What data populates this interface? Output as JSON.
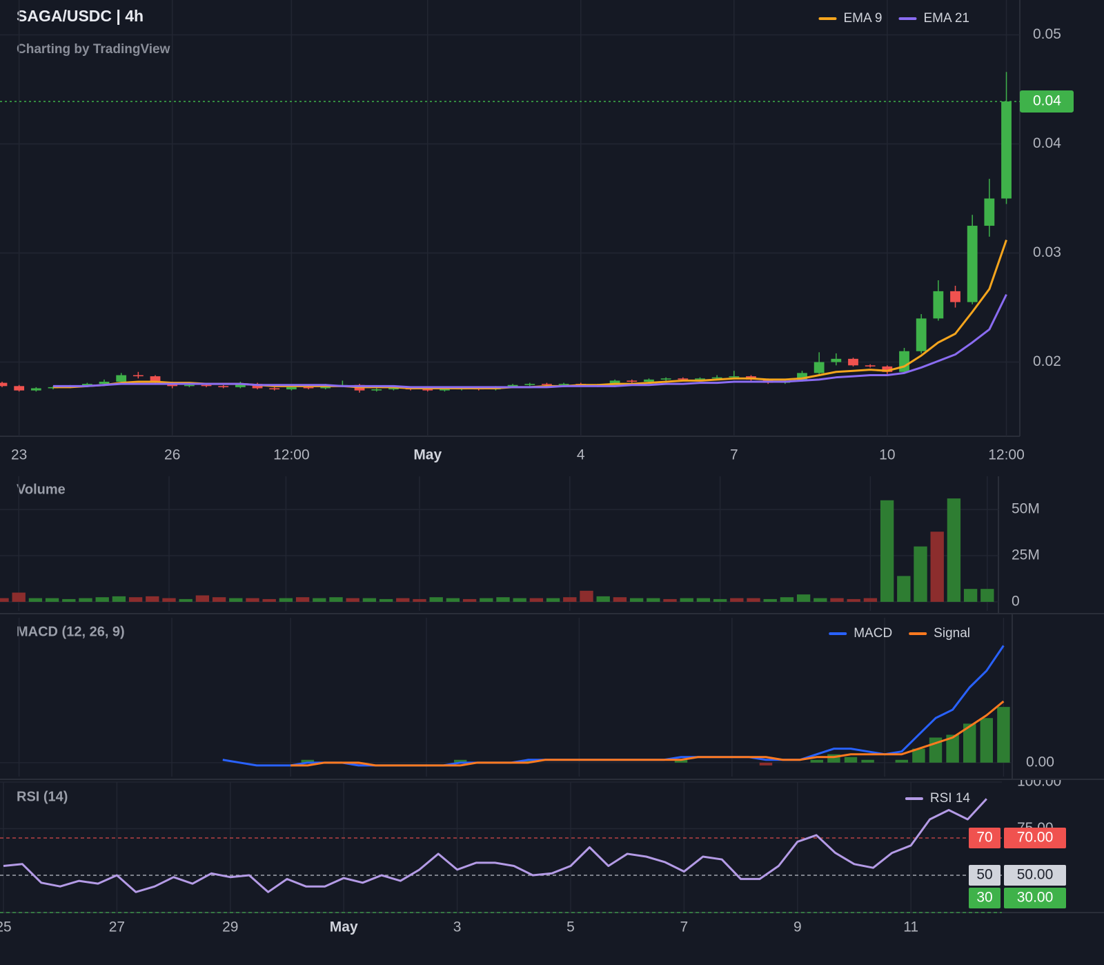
{
  "chart_data": [
    {
      "type": "candlestick",
      "title": "SAGA/USDC | 4h",
      "subtitle": "Charting by TradingView",
      "categories": [
        null,
        "23",
        null,
        null,
        null,
        null,
        null,
        null,
        null,
        null,
        "26",
        null,
        null,
        null,
        null,
        null,
        null,
        "12:00",
        null,
        null,
        null,
        null,
        null,
        null,
        null,
        "May",
        null,
        null,
        null,
        null,
        null,
        null,
        null,
        null,
        "4",
        null,
        null,
        null,
        null,
        null,
        null,
        null,
        null,
        "7",
        null,
        null,
        null,
        null,
        null,
        null,
        null,
        null,
        "10",
        null,
        null,
        null,
        null,
        null,
        null,
        "12:00"
      ],
      "open": [
        0.0181,
        0.0178,
        0.0174,
        0.0176,
        0.0177,
        0.0178,
        0.018,
        0.0182,
        0.0188,
        0.0187,
        0.0181,
        0.0178,
        0.0179,
        0.0178,
        0.0177,
        0.018,
        0.0176,
        0.0175,
        0.0177,
        0.0176,
        0.0178,
        0.0179,
        0.0174,
        0.0175,
        0.0176,
        0.0175,
        0.0174,
        0.0175,
        0.0176,
        0.0175,
        0.0177,
        0.0179,
        0.018,
        0.0179,
        0.018,
        0.0179,
        0.0178,
        0.0183,
        0.0182,
        0.0184,
        0.0185,
        0.0184,
        0.0185,
        0.0186,
        0.0187,
        0.0184,
        0.0181,
        0.0183,
        0.019,
        0.02,
        0.0203,
        0.0197,
        0.0196,
        0.0191,
        0.021,
        0.024,
        0.0265,
        0.0255,
        0.0325,
        0.035
      ],
      "high": [
        0.0182,
        0.0179,
        0.0177,
        0.0178,
        0.0179,
        0.0181,
        0.0184,
        0.019,
        0.0191,
        0.0188,
        0.0182,
        0.018,
        0.018,
        0.0179,
        0.0182,
        0.0181,
        0.0177,
        0.0178,
        0.0178,
        0.018,
        0.0183,
        0.018,
        0.0176,
        0.0177,
        0.0177,
        0.0176,
        0.0176,
        0.0177,
        0.0177,
        0.0178,
        0.018,
        0.0181,
        0.0181,
        0.0181,
        0.0181,
        0.018,
        0.0184,
        0.0184,
        0.0185,
        0.0186,
        0.0186,
        0.0186,
        0.0188,
        0.0192,
        0.0188,
        0.0185,
        0.0184,
        0.0192,
        0.0209,
        0.0208,
        0.0204,
        0.0198,
        0.0197,
        0.0213,
        0.0244,
        0.0275,
        0.027,
        0.0335,
        0.0368,
        0.0466
      ],
      "low": [
        0.0177,
        0.0173,
        0.0173,
        0.0175,
        0.0176,
        0.0177,
        0.0179,
        0.0181,
        0.0185,
        0.018,
        0.0176,
        0.0177,
        0.0177,
        0.0176,
        0.0176,
        0.0175,
        0.0174,
        0.0174,
        0.0175,
        0.0175,
        0.0177,
        0.0172,
        0.0173,
        0.0174,
        0.0174,
        0.0173,
        0.0173,
        0.0174,
        0.0174,
        0.0174,
        0.0176,
        0.0178,
        0.0178,
        0.0178,
        0.0178,
        0.0177,
        0.0177,
        0.0181,
        0.0181,
        0.0183,
        0.0183,
        0.0183,
        0.0184,
        0.0185,
        0.0183,
        0.018,
        0.018,
        0.0182,
        0.0189,
        0.0197,
        0.0196,
        0.0195,
        0.0189,
        0.019,
        0.0208,
        0.0238,
        0.025,
        0.0253,
        0.0315,
        0.0345
      ],
      "close": [
        0.0178,
        0.0174,
        0.0176,
        0.0177,
        0.0178,
        0.018,
        0.0182,
        0.0188,
        0.0187,
        0.0181,
        0.0178,
        0.0179,
        0.0178,
        0.0177,
        0.018,
        0.0176,
        0.0175,
        0.0177,
        0.0176,
        0.0178,
        0.0179,
        0.0174,
        0.0175,
        0.0176,
        0.0175,
        0.0174,
        0.0175,
        0.0176,
        0.0175,
        0.0177,
        0.0179,
        0.018,
        0.0179,
        0.018,
        0.0179,
        0.0178,
        0.0183,
        0.0182,
        0.0184,
        0.0185,
        0.0184,
        0.0185,
        0.0186,
        0.0187,
        0.0184,
        0.0181,
        0.0183,
        0.019,
        0.02,
        0.0203,
        0.0197,
        0.0196,
        0.0191,
        0.021,
        0.024,
        0.0265,
        0.0255,
        0.0325,
        0.035,
        0.0439
      ],
      "up_color": "#3fb24a",
      "down_color": "#f0524f",
      "series": [
        {
          "name": "EMA 9",
          "color": "#f5a51d",
          "values": [
            null,
            null,
            null,
            0.0177,
            0.0177,
            0.0178,
            0.0179,
            0.0181,
            0.0182,
            0.0182,
            0.0181,
            0.0181,
            0.018,
            0.018,
            0.018,
            0.0179,
            0.0178,
            0.0178,
            0.0178,
            0.0178,
            0.0178,
            0.0177,
            0.0177,
            0.0177,
            0.0176,
            0.0176,
            0.0176,
            0.0176,
            0.0176,
            0.0176,
            0.0177,
            0.0177,
            0.0178,
            0.0178,
            0.0179,
            0.0179,
            0.018,
            0.018,
            0.0181,
            0.0182,
            0.0183,
            0.0183,
            0.0184,
            0.0185,
            0.0185,
            0.0184,
            0.0184,
            0.0185,
            0.0188,
            0.0191,
            0.0192,
            0.0193,
            0.0192,
            0.0196,
            0.0206,
            0.0218,
            0.0226,
            0.0246,
            0.0267,
            0.0312
          ]
        },
        {
          "name": "EMA 21",
          "color": "#8a6cf2",
          "values": [
            null,
            null,
            null,
            0.0178,
            0.0178,
            0.0178,
            0.0179,
            0.018,
            0.018,
            0.018,
            0.018,
            0.018,
            0.018,
            0.018,
            0.018,
            0.0179,
            0.0179,
            0.0179,
            0.0179,
            0.0179,
            0.0178,
            0.0178,
            0.0178,
            0.0178,
            0.0177,
            0.0177,
            0.0177,
            0.0177,
            0.0177,
            0.0177,
            0.0177,
            0.0177,
            0.0177,
            0.0178,
            0.0178,
            0.0178,
            0.0178,
            0.0179,
            0.0179,
            0.018,
            0.018,
            0.0181,
            0.0181,
            0.0182,
            0.0182,
            0.0182,
            0.0182,
            0.0183,
            0.0184,
            0.0186,
            0.0187,
            0.0188,
            0.0188,
            0.019,
            0.0195,
            0.0201,
            0.0207,
            0.0218,
            0.023,
            0.0262
          ]
        }
      ],
      "ylim": [
        0.0132,
        0.0532
      ],
      "yticks": [
        0.02,
        0.03,
        0.04,
        0.05
      ],
      "last_price": {
        "value": 0.0439,
        "label": "0.04"
      },
      "grid": true,
      "legend": "top-right"
    },
    {
      "type": "bar",
      "title": "Volume",
      "values": [
        2000000,
        5000000,
        2000000,
        2000000,
        1500000,
        2000000,
        2500000,
        3000000,
        2500000,
        3000000,
        2000000,
        1500000,
        3500000,
        2500000,
        2000000,
        2000000,
        1500000,
        2000000,
        2500000,
        2000000,
        2500000,
        2000000,
        2000000,
        1500000,
        2000000,
        1500000,
        2500000,
        2000000,
        1500000,
        2000000,
        2500000,
        2000000,
        2000000,
        2000000,
        2500000,
        6000000,
        3000000,
        2500000,
        2000000,
        2000000,
        1500000,
        2000000,
        2000000,
        1500000,
        2000000,
        2000000,
        1500000,
        2500000,
        4000000,
        2000000,
        2000000,
        1500000,
        2000000,
        55000000,
        14000000,
        30000000,
        38000000,
        56000000,
        7000000,
        7000000
      ],
      "up_color": "#2e7d32",
      "down_color": "#8c2d2d",
      "ylim": [
        -4900000,
        68000000
      ],
      "yticks": [
        0,
        {
          "value": 25000000,
          "label": "25M"
        },
        {
          "value": 50000000,
          "label": "50M"
        }
      ],
      "grid": true
    },
    {
      "type": "line",
      "title": "MACD (12, 26, 9)",
      "series": [
        {
          "name": "MACD",
          "color": "#2962ff",
          "values": [
            null,
            null,
            null,
            null,
            null,
            null,
            null,
            null,
            null,
            null,
            null,
            null,
            null,
            0.0001,
            0,
            -0.0001,
            -0.0001,
            -0.0001,
            0,
            0,
            0,
            -0.0001,
            -0.0001,
            -0.0001,
            -0.0001,
            -0.0001,
            -0.0001,
            0,
            0,
            0,
            0,
            0.0001,
            0.0001,
            0.0001,
            0.0001,
            0.0001,
            0.0001,
            0.0001,
            0.0001,
            0.0001,
            0.0002,
            0.0002,
            0.0002,
            0.0002,
            0.0002,
            0.0001,
            0.0001,
            0.0001,
            0.0003,
            0.0005,
            0.0005,
            0.0004,
            0.0003,
            0.0004,
            0.001,
            0.0016,
            0.0019,
            0.0027,
            0.0033,
            0.0042
          ]
        },
        {
          "name": "Signal",
          "color": "#ff7a1f",
          "values": [
            null,
            null,
            null,
            null,
            null,
            null,
            null,
            null,
            null,
            null,
            null,
            null,
            null,
            null,
            null,
            null,
            null,
            -0.0001,
            -0.0001,
            0,
            0,
            0,
            -0.0001,
            -0.0001,
            -0.0001,
            -0.0001,
            -0.0001,
            -0.0001,
            0,
            0,
            0,
            0,
            0.0001,
            0.0001,
            0.0001,
            0.0001,
            0.0001,
            0.0001,
            0.0001,
            0.0001,
            0.0001,
            0.0002,
            0.0002,
            0.0002,
            0.0002,
            0.0002,
            0.0001,
            0.0001,
            0.0002,
            0.0002,
            0.0003,
            0.0003,
            0.0003,
            0.0003,
            0.0005,
            0.0007,
            0.0009,
            0.0013,
            0.0017,
            0.0022
          ]
        }
      ],
      "histogram": [
        null,
        null,
        null,
        null,
        null,
        null,
        null,
        null,
        null,
        null,
        null,
        null,
        null,
        null,
        null,
        null,
        null,
        0,
        0.0001,
        0,
        0,
        -0.0001,
        0,
        0,
        0,
        0,
        0,
        0.0001,
        0,
        0,
        0,
        0.0001,
        0,
        0,
        0,
        0,
        0,
        0,
        0,
        0,
        0.0001,
        0,
        0,
        0,
        0,
        -0.0001,
        0,
        0,
        0.0001,
        0.0003,
        0.0002,
        0.0001,
        0,
        0.0001,
        0.0005,
        0.0009,
        0.001,
        0.0014,
        0.0016,
        0.002
      ],
      "up_color": "#2e7d32",
      "down_color": "#8c2d2d",
      "ylim": [
        -0.0005,
        0.0052
      ],
      "yticks": [
        {
          "value": 0,
          "label": "0.00"
        }
      ],
      "grid": true,
      "legend": "top-right"
    },
    {
      "type": "line",
      "title": "RSI (14)",
      "categories": [
        "25",
        null,
        null,
        null,
        null,
        null,
        "27",
        null,
        null,
        null,
        null,
        null,
        "29",
        null,
        null,
        null,
        null,
        null,
        "May",
        null,
        null,
        null,
        null,
        null,
        "3",
        null,
        null,
        null,
        null,
        null,
        "5",
        null,
        null,
        null,
        null,
        null,
        "7",
        null,
        null,
        null,
        null,
        null,
        "9",
        null,
        null,
        null,
        null,
        null,
        "11",
        null,
        null,
        null,
        null
      ],
      "series": [
        {
          "name": "RSI 14",
          "color": "#b49be6",
          "values": [
            55,
            56,
            46,
            44,
            47,
            45.5,
            50,
            41,
            44,
            49,
            45.5,
            51,
            49,
            50,
            41,
            48,
            44,
            44,
            48.5,
            46,
            50,
            47,
            53,
            61.5,
            53,
            56.7,
            56.7,
            55,
            50,
            51,
            55,
            65,
            55,
            61.5,
            60,
            57,
            52,
            60,
            58.5,
            48,
            48,
            55,
            68,
            71.5,
            62,
            56,
            54,
            62,
            66,
            80,
            85,
            80,
            91
          ]
        }
      ],
      "ylim": [
        30,
        100
      ],
      "yticks": [
        {
          "value": 75,
          "label": "75.00"
        },
        {
          "value": 100,
          "label": "100.00"
        }
      ],
      "levels": [
        {
          "value": 70,
          "label": "70.00",
          "color": "#f0524f"
        },
        {
          "value": 50,
          "label": "50.00",
          "color": "#d1d4dc"
        },
        {
          "value": 30,
          "label": "30.00",
          "color": "#3fb24a"
        }
      ],
      "grid": true,
      "legend": "top-right"
    }
  ]
}
